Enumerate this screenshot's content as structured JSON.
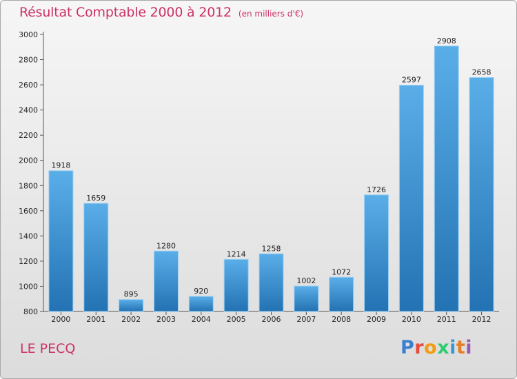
{
  "header": {
    "title": "Résultat Comptable 2000 à 2012",
    "subtitle": "(en milliers d'€)"
  },
  "footer": {
    "city": "LE PECQ",
    "logo_text": "Proxiti"
  },
  "colors": {
    "accent": "#cc3366",
    "bar_top": "#5aaee8",
    "bar_bottom": "#2372b3",
    "logo_letters": [
      "#3a7fd0",
      "#e74c3c",
      "#f39c12",
      "#2ecc71",
      "#3498db",
      "#e67e22",
      "#9b59b6"
    ]
  },
  "chart_data": {
    "type": "bar",
    "title": "Résultat Comptable 2000 à 2012",
    "subtitle": "(en milliers d'€)",
    "categories": [
      "2000",
      "2001",
      "2002",
      "2003",
      "2004",
      "2005",
      "2006",
      "2007",
      "2008",
      "2009",
      "2010",
      "2011",
      "2012"
    ],
    "values": [
      1918,
      1659,
      895,
      1280,
      920,
      1214,
      1258,
      1002,
      1072,
      1726,
      2597,
      2908,
      2658
    ],
    "yticks": [
      800,
      1000,
      1200,
      1400,
      1600,
      1800,
      2000,
      2200,
      2400,
      2600,
      2800,
      3000
    ],
    "ylim": [
      800,
      3000
    ],
    "grid": false,
    "data_labels": true
  }
}
